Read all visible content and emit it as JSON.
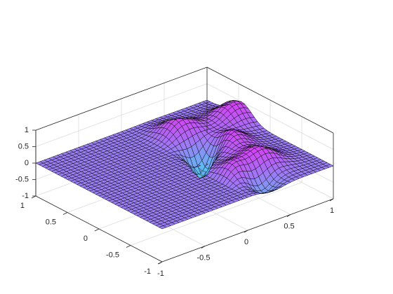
{
  "chart_data": {
    "type": "surface",
    "title": "",
    "xlabel": "",
    "ylabel": "",
    "zlabel": "",
    "xlim": [
      -1,
      1
    ],
    "ylim": [
      -1,
      1
    ],
    "zlim": [
      -1,
      1
    ],
    "grid": true,
    "box": true,
    "colormap": {
      "low": "#34e8f4",
      "high": "#ff14f4"
    },
    "edge_color": "#000000",
    "x_ticks": [
      "-1",
      "-0.5",
      "0",
      "0.5",
      "1"
    ],
    "y_ticks": [
      "-1",
      "-0.5",
      "0",
      "0.5",
      "1"
    ],
    "z_ticks": [
      "-1",
      "-0.5",
      "0",
      "0.5",
      "1"
    ],
    "surface": {
      "description_of_shape": "",
      "flat_region": "x < 0",
      "x_samples": 41,
      "y_samples": 41,
      "peaks": [
        {
          "x": 0.5,
          "y": 0.0,
          "z": 0.62
        },
        {
          "x": 0.5,
          "y": -0.5,
          "z": 0.55
        },
        {
          "x": 0.35,
          "y": 0.55,
          "z": 0.55
        },
        {
          "x": 0.9,
          "y": 0.45,
          "z": 0.6
        },
        {
          "x": 0.1,
          "y": -0.55,
          "z": 0.5
        }
      ],
      "troughs": [
        {
          "x": 0.3,
          "y": 0.1,
          "z": -1.0
        },
        {
          "x": 0.3,
          "y": -0.8,
          "z": -0.4
        }
      ]
    }
  }
}
